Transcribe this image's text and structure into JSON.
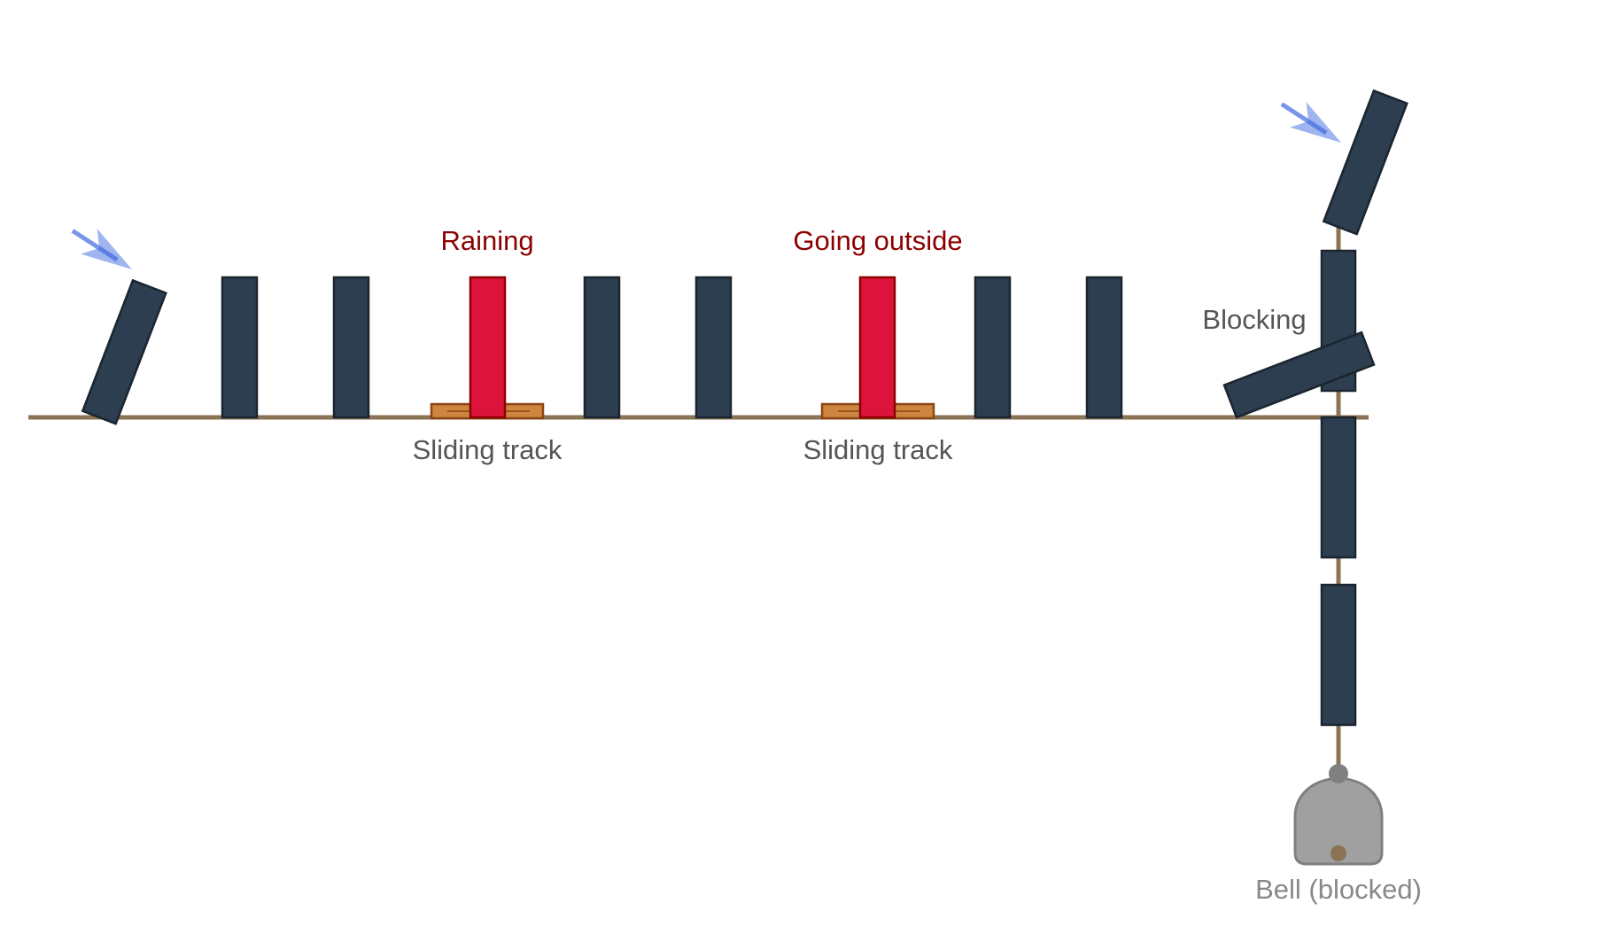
{
  "labels": {
    "raining": "Raining",
    "going_outside": "Going outside",
    "sliding_track_1": "Sliding track",
    "sliding_track_2": "Sliding track",
    "blocking": "Blocking",
    "bell": "Bell (blocked)"
  },
  "colors": {
    "domino": "#2c3e50",
    "trigger_domino": "#dc143c",
    "track": "#8b7355",
    "sliding_track": "#cd853f",
    "push_arrow": "#4169e1",
    "bell": "#a0a0a0"
  },
  "icons": [
    "push-arrow-icon",
    "bell-icon"
  ]
}
